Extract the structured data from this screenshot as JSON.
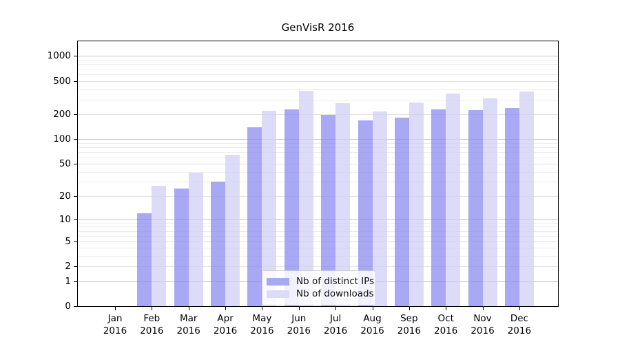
{
  "title": "GenVisR 2016",
  "chart_data": {
    "type": "bar",
    "title": "GenVisR 2016",
    "categories": [
      "Jan",
      "Feb",
      "Mar",
      "Apr",
      "May",
      "Jun",
      "Jul",
      "Aug",
      "Sep",
      "Oct",
      "Nov",
      "Dec"
    ],
    "category_year": "2016",
    "series": [
      {
        "name": "Nb of distinct IPs",
        "color": "rgba(134,134,240,0.72)",
        "legend_color": "#a9a9f2",
        "values": [
          0,
          12,
          25,
          30,
          140,
          228,
          197,
          168,
          183,
          230,
          222,
          235
        ]
      },
      {
        "name": "Nb of downloads",
        "color": "rgba(207,207,247,0.72)",
        "legend_color": "#dcdcf8",
        "values": [
          0,
          27,
          39,
          65,
          220,
          380,
          272,
          215,
          275,
          355,
          310,
          378
        ]
      }
    ],
    "xlabel": "",
    "ylabel": "",
    "yscale": "log1p",
    "ylim": [
      0,
      1500
    ],
    "y_major_ticks": [
      0,
      1,
      2,
      5,
      10,
      20,
      50,
      100,
      200,
      500,
      1000
    ],
    "y_minor_gridlines": [
      3,
      4,
      6,
      7,
      8,
      9,
      30,
      40,
      60,
      70,
      80,
      90,
      300,
      400,
      600,
      700,
      800,
      900
    ],
    "grid": true,
    "legend_position": "lower center",
    "grid_color_power10": "#c6c6c6",
    "grid_color_major": "#e2e2e2",
    "grid_color_minor": "#ededed"
  }
}
